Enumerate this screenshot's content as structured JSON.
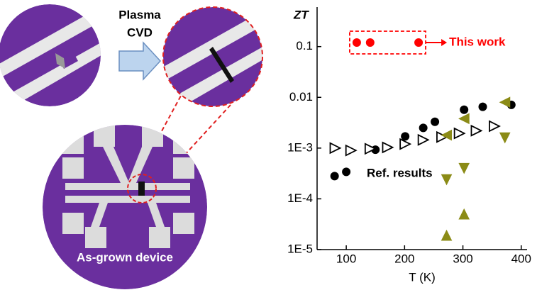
{
  "diagram": {
    "arrow_label": [
      "Plasma",
      "CVD"
    ],
    "device_label": "As-grown device"
  },
  "chart_data": {
    "type": "scatter",
    "log_y": true,
    "y_label": "ZT",
    "x_label": "T (K)",
    "xlim": [
      50,
      410
    ],
    "xticks": [
      100,
      200,
      300,
      400
    ],
    "ylim": [
      1e-05,
      0.6
    ],
    "yticks": [
      {
        "value": 1e-05,
        "label": "1E-5"
      },
      {
        "value": 0.0001,
        "label": "1E-4"
      },
      {
        "value": 0.001,
        "label": "1E-3"
      },
      0.01,
      0.1
    ],
    "annotations": [
      {
        "text": "This work",
        "color": "#ff0000"
      },
      {
        "text": "Ref. results",
        "color": "#000000"
      }
    ],
    "series": [
      {
        "name": "This work",
        "marker": "circle",
        "filled": true,
        "color": "#ff0000",
        "x": [
          118,
          141,
          224
        ],
        "values": [
          0.12,
          0.12,
          0.12
        ]
      },
      {
        "marker": "circle",
        "filled": true,
        "color": "#000000",
        "x": [
          80,
          100,
          150,
          201,
          232,
          252,
          302,
          334,
          383
        ],
        "values": [
          0.00028,
          0.00034,
          0.00093,
          0.0017,
          0.0025,
          0.0033,
          0.0057,
          0.0065,
          0.0071
        ]
      },
      {
        "marker": "tri-right",
        "filled": false,
        "color": "#000000",
        "x": [
          81,
          108,
          141,
          171,
          201,
          232,
          264,
          294,
          323,
          354
        ],
        "values": [
          0.001,
          0.0009,
          0.00097,
          0.00103,
          0.0012,
          0.00145,
          0.00165,
          0.00195,
          0.0022,
          0.0027
        ]
      },
      {
        "marker": "tri-left",
        "filled": true,
        "color": "#8b8b16",
        "x": [
          272,
          302,
          372
        ],
        "values": [
          0.0018,
          0.0038,
          0.008
        ]
      },
      {
        "marker": "tri-down",
        "filled": true,
        "color": "#8b8b16",
        "x": [
          272,
          302,
          372
        ],
        "values": [
          0.00024,
          0.0004,
          0.0016
        ]
      },
      {
        "marker": "tri-up",
        "filled": true,
        "color": "#8b8b16",
        "x": [
          272,
          302
        ],
        "values": [
          1.9e-05,
          5e-05
        ]
      }
    ]
  }
}
